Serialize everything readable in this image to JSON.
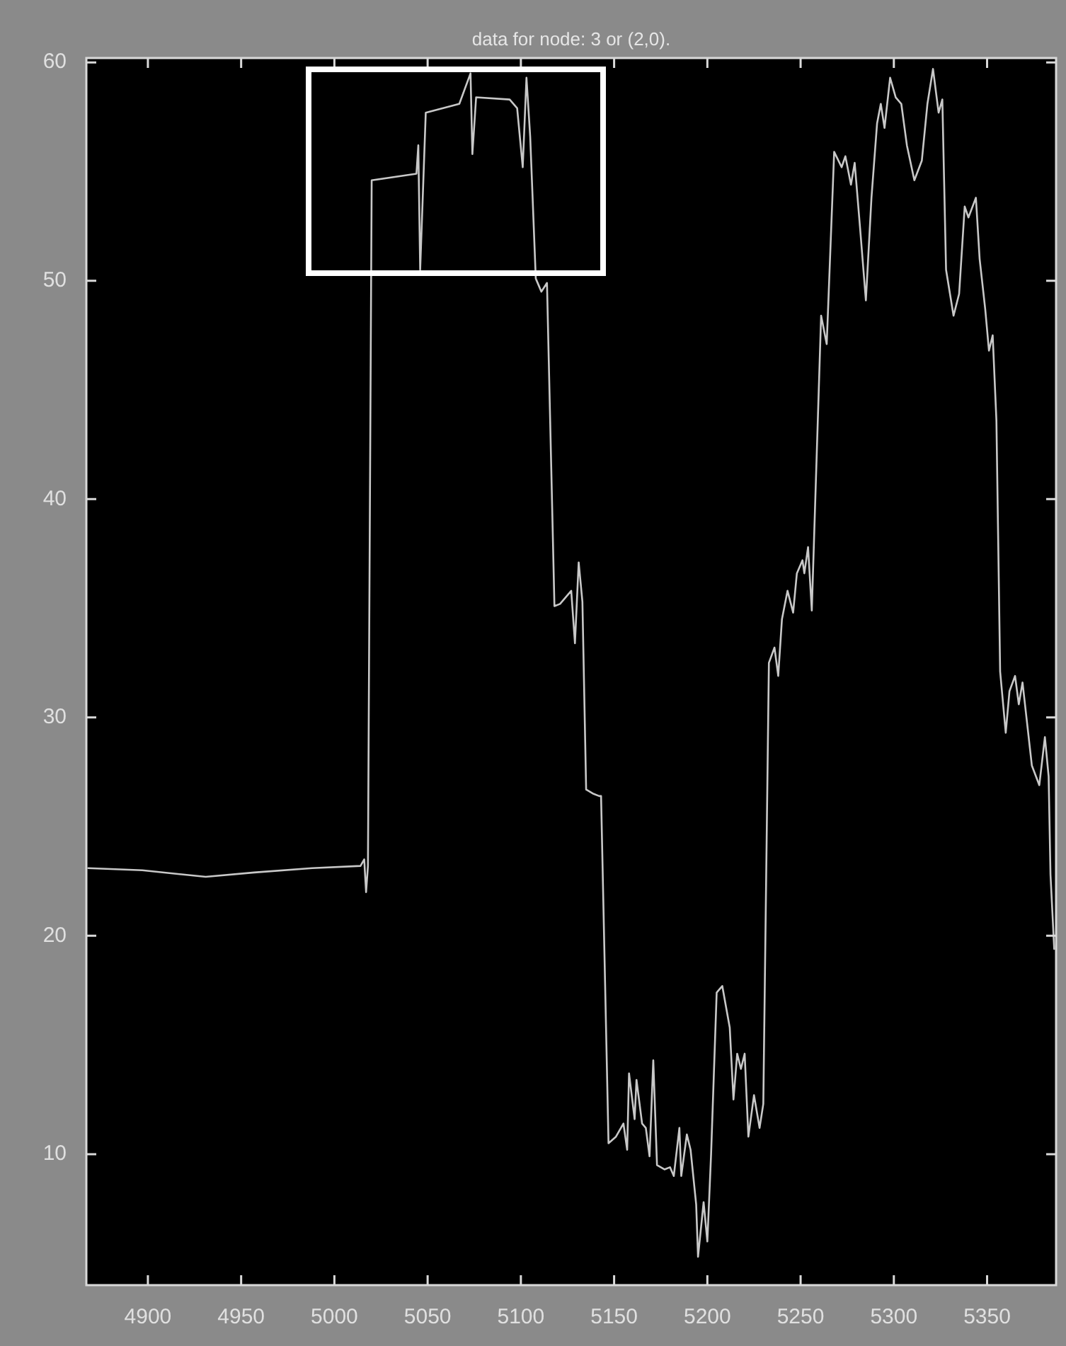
{
  "chart_data": {
    "type": "line",
    "title": "data for node: 3 or (2,0).",
    "x": [
      4868,
      4897,
      4931,
      4957,
      4988,
      5014,
      5016,
      5017,
      5018,
      5020,
      5044,
      5045,
      5046,
      5049,
      5067,
      5073,
      5074,
      5076,
      5094,
      5098,
      5101,
      5103,
      5105,
      5108,
      5111,
      5114,
      5118,
      5121,
      5127,
      5129,
      5131,
      5133,
      5135,
      5139,
      5142,
      5143,
      5147,
      5151,
      5155,
      5157,
      5158,
      5161,
      5162,
      5165,
      5167,
      5169,
      5171,
      5173,
      5177,
      5180,
      5182,
      5185,
      5186,
      5189,
      5191,
      5194,
      5195,
      5198,
      5200,
      5202,
      5205,
      5208,
      5212,
      5214,
      5216,
      5218,
      5220,
      5222,
      5225,
      5228,
      5230,
      5233,
      5236,
      5238,
      5240,
      5243,
      5246,
      5248,
      5251,
      5252,
      5254,
      5256,
      5261,
      5264,
      5268,
      5272,
      5274,
      5277,
      5279,
      5282,
      5285,
      5288,
      5291,
      5293,
      5295,
      5298,
      5301,
      5304,
      5307,
      5311,
      5315,
      5318,
      5321,
      5324,
      5326,
      5328,
      5332,
      5335,
      5338,
      5340,
      5344,
      5346,
      5349,
      5351,
      5353,
      5355,
      5357,
      5360,
      5362,
      5365,
      5367,
      5369,
      5374,
      5378,
      5381,
      5383,
      5384,
      5386
    ],
    "series": [
      {
        "color": "#c8c8c8",
        "values": [
          23.1,
          23.0,
          22.7,
          22.9,
          23.1,
          23.2,
          23.5,
          22.0,
          23.2,
          54.6,
          54.9,
          56.2,
          50.5,
          57.7,
          58.1,
          59.5,
          55.8,
          58.4,
          58.3,
          57.9,
          55.2,
          59.3,
          56.6,
          50.1,
          49.5,
          49.9,
          35.1,
          35.2,
          35.8,
          33.4,
          37.1,
          35.3,
          26.7,
          26.5,
          26.4,
          26.4,
          10.5,
          10.8,
          11.4,
          10.2,
          13.7,
          11.6,
          13.4,
          11.4,
          11.2,
          9.9,
          14.3,
          9.5,
          9.3,
          9.4,
          9.0,
          11.2,
          9.0,
          10.9,
          10.2,
          7.7,
          5.3,
          7.8,
          6.0,
          10.0,
          17.4,
          17.7,
          15.8,
          12.5,
          14.6,
          13.9,
          14.6,
          10.8,
          12.7,
          11.2,
          12.3,
          32.5,
          33.2,
          31.9,
          34.5,
          35.8,
          34.8,
          36.6,
          37.2,
          36.6,
          37.8,
          34.9,
          48.4,
          47.1,
          55.9,
          55.2,
          55.7,
          54.4,
          55.4,
          52.3,
          49.1,
          53.8,
          57.2,
          58.1,
          57.0,
          59.3,
          58.4,
          58.1,
          56.2,
          54.6,
          55.5,
          58.1,
          59.7,
          57.7,
          58.3,
          50.5,
          48.4,
          49.4,
          53.4,
          52.9,
          53.8,
          51.0,
          48.7,
          46.8,
          47.5,
          43.6,
          32.1,
          29.3,
          31.2,
          31.9,
          30.6,
          31.6,
          27.8,
          26.9,
          29.1,
          27.3,
          22.8,
          19.4
        ]
      }
    ],
    "xlim": [
      4867,
      5387
    ],
    "xticks": [
      4900,
      4950,
      5000,
      5050,
      5100,
      5150,
      5200,
      5250,
      5300,
      5350
    ],
    "ylim": [
      4,
      60.2
    ],
    "yticks": [
      10,
      20,
      30,
      40,
      50,
      60
    ],
    "line_style": "solid"
  }
}
